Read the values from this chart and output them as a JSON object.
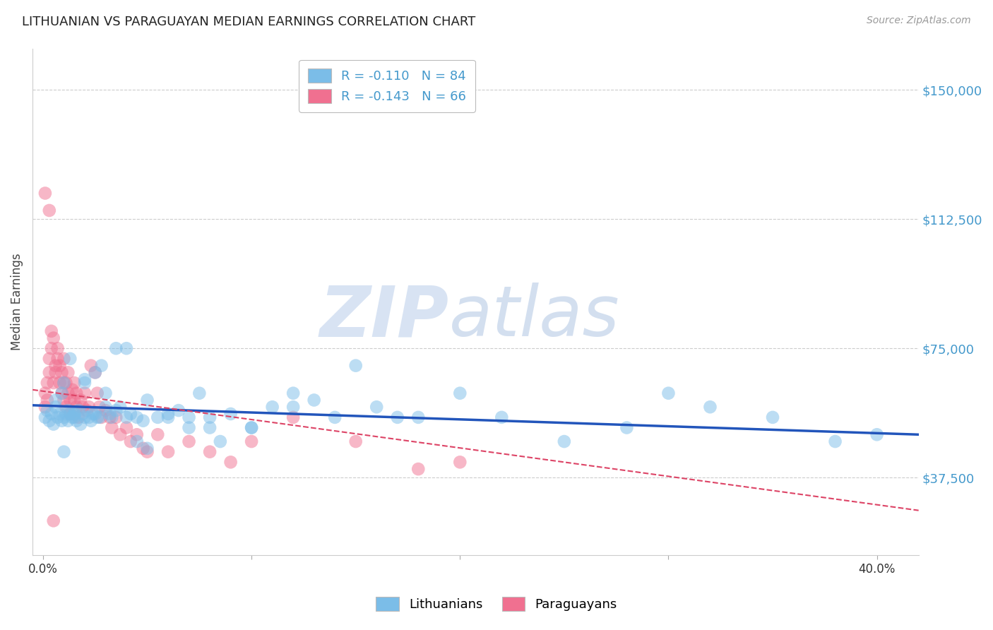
{
  "title": "LITHUANIAN VS PARAGUAYAN MEDIAN EARNINGS CORRELATION CHART",
  "source": "Source: ZipAtlas.com",
  "ylabel": "Median Earnings",
  "xlabel_ticks": [
    "0.0%",
    "",
    "",
    "",
    "40.0%"
  ],
  "xlabel_vals": [
    0.0,
    0.1,
    0.2,
    0.3,
    0.4
  ],
  "ytick_labels": [
    "$37,500",
    "$75,000",
    "$112,500",
    "$150,000"
  ],
  "ytick_vals": [
    37500,
    75000,
    112500,
    150000
  ],
  "ylim": [
    15000,
    162000
  ],
  "xlim": [
    -0.005,
    0.42
  ],
  "blue_color": "#7bbde8",
  "pink_color": "#f07090",
  "blue_line_color": "#2255bb",
  "pink_line_color": "#dd4466",
  "background_color": "#ffffff",
  "grid_color": "#cccccc",
  "title_color": "#222222",
  "right_tick_color": "#4499cc",
  "lithuanians_label": "Lithuanians",
  "paraguayans_label": "Paraguayans",
  "blue_scatter_x": [
    0.001,
    0.002,
    0.003,
    0.004,
    0.005,
    0.006,
    0.006,
    0.007,
    0.008,
    0.009,
    0.009,
    0.01,
    0.01,
    0.011,
    0.012,
    0.012,
    0.013,
    0.013,
    0.014,
    0.015,
    0.015,
    0.016,
    0.017,
    0.018,
    0.019,
    0.02,
    0.02,
    0.022,
    0.023,
    0.024,
    0.025,
    0.026,
    0.027,
    0.028,
    0.03,
    0.032,
    0.033,
    0.035,
    0.037,
    0.04,
    0.042,
    0.045,
    0.048,
    0.05,
    0.055,
    0.06,
    0.065,
    0.07,
    0.075,
    0.08,
    0.085,
    0.09,
    0.1,
    0.11,
    0.12,
    0.13,
    0.14,
    0.15,
    0.16,
    0.17,
    0.18,
    0.2,
    0.22,
    0.25,
    0.28,
    0.3,
    0.32,
    0.35,
    0.38,
    0.4,
    0.01,
    0.015,
    0.02,
    0.025,
    0.03,
    0.035,
    0.04,
    0.045,
    0.05,
    0.06,
    0.07,
    0.08,
    0.1,
    0.12
  ],
  "blue_scatter_y": [
    55000,
    57000,
    54000,
    56000,
    53000,
    58000,
    60000,
    55000,
    56000,
    54000,
    62000,
    55000,
    65000,
    56000,
    57000,
    54000,
    56000,
    72000,
    55000,
    56000,
    55000,
    54000,
    57000,
    53000,
    56000,
    55000,
    66000,
    55000,
    54000,
    56000,
    68000,
    55000,
    55000,
    70000,
    58000,
    56000,
    55000,
    57000,
    58000,
    75000,
    56000,
    55000,
    54000,
    60000,
    55000,
    56000,
    57000,
    52000,
    62000,
    55000,
    48000,
    56000,
    52000,
    58000,
    62000,
    60000,
    55000,
    70000,
    58000,
    55000,
    55000,
    62000,
    55000,
    48000,
    52000,
    62000,
    58000,
    55000,
    48000,
    50000,
    45000,
    56000,
    65000,
    56000,
    62000,
    75000,
    55000,
    48000,
    46000,
    55000,
    55000,
    52000,
    52000,
    58000
  ],
  "pink_scatter_x": [
    0.001,
    0.001,
    0.002,
    0.002,
    0.003,
    0.003,
    0.004,
    0.004,
    0.005,
    0.005,
    0.006,
    0.006,
    0.007,
    0.007,
    0.008,
    0.008,
    0.009,
    0.009,
    0.01,
    0.01,
    0.01,
    0.011,
    0.011,
    0.012,
    0.012,
    0.013,
    0.013,
    0.014,
    0.015,
    0.015,
    0.016,
    0.016,
    0.017,
    0.018,
    0.019,
    0.02,
    0.021,
    0.022,
    0.023,
    0.025,
    0.026,
    0.027,
    0.028,
    0.03,
    0.032,
    0.033,
    0.035,
    0.037,
    0.04,
    0.042,
    0.045,
    0.048,
    0.05,
    0.055,
    0.06,
    0.07,
    0.08,
    0.09,
    0.1,
    0.12,
    0.15,
    0.18,
    0.2,
    0.001,
    0.003,
    0.005
  ],
  "pink_scatter_y": [
    58000,
    62000,
    65000,
    60000,
    72000,
    68000,
    75000,
    80000,
    78000,
    65000,
    70000,
    68000,
    75000,
    72000,
    70000,
    65000,
    68000,
    62000,
    65000,
    60000,
    72000,
    58000,
    65000,
    62000,
    68000,
    60000,
    56000,
    63000,
    65000,
    60000,
    62000,
    58000,
    55000,
    60000,
    58000,
    62000,
    57000,
    58000,
    70000,
    68000,
    62000,
    58000,
    55000,
    57000,
    55000,
    52000,
    55000,
    50000,
    52000,
    48000,
    50000,
    46000,
    45000,
    50000,
    45000,
    48000,
    45000,
    42000,
    48000,
    55000,
    48000,
    40000,
    42000,
    120000,
    115000,
    25000
  ],
  "blue_trend_x": [
    -0.005,
    0.42
  ],
  "blue_trend_y": [
    58500,
    50000
  ],
  "pink_trend_x": [
    -0.005,
    0.42
  ],
  "pink_trend_y": [
    63000,
    28000
  ],
  "watermark_zip": "ZIP",
  "watermark_atlas": "atlas"
}
